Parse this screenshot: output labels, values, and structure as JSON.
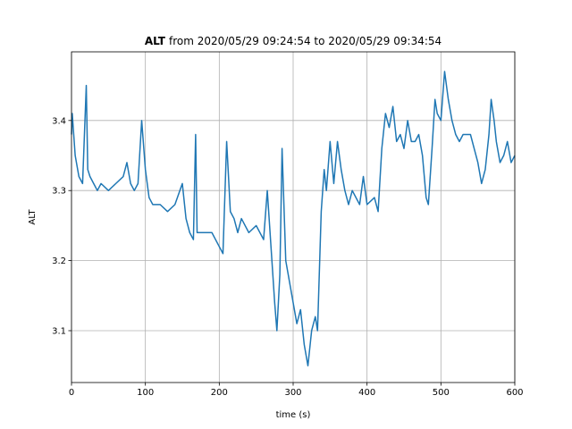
{
  "chart_data": {
    "type": "line",
    "title_parts": [
      "ALT",
      "from 2020/05/29 09:24:54 to 2020/05/29 09:34:54"
    ],
    "xlabel": "time (s)",
    "ylabel": "ALT",
    "xlim": [
      0,
      600
    ],
    "xticks": [
      0,
      100,
      200,
      300,
      400,
      500,
      600
    ],
    "ylim": [
      3.026,
      3.498
    ],
    "yticks": [
      3.1,
      3.2,
      3.3,
      3.4
    ],
    "grid": true,
    "x": [
      0,
      1,
      5,
      10,
      15,
      20,
      22,
      25,
      30,
      35,
      40,
      50,
      60,
      70,
      75,
      80,
      85,
      90,
      95,
      100,
      105,
      110,
      120,
      130,
      140,
      150,
      155,
      160,
      165,
      168,
      170,
      180,
      190,
      200,
      205,
      210,
      215,
      220,
      225,
      230,
      240,
      250,
      260,
      265,
      270,
      275,
      278,
      282,
      285,
      290,
      295,
      300,
      305,
      310,
      315,
      320,
      325,
      330,
      333,
      338,
      342,
      345,
      350,
      355,
      360,
      365,
      370,
      375,
      380,
      390,
      395,
      400,
      410,
      415,
      420,
      425,
      430,
      435,
      440,
      445,
      450,
      455,
      460,
      465,
      470,
      475,
      480,
      483,
      488,
      492,
      495,
      500,
      505,
      510,
      515,
      520,
      525,
      530,
      540,
      545,
      550,
      555,
      560,
      565,
      568,
      572,
      575,
      580,
      585,
      590,
      595,
      600
    ],
    "series": [
      {
        "name": "ALT",
        "color": "#1f77b4",
        "values": [
          3.38,
          3.41,
          3.35,
          3.32,
          3.31,
          3.45,
          3.33,
          3.32,
          3.31,
          3.3,
          3.31,
          3.3,
          3.31,
          3.32,
          3.34,
          3.31,
          3.3,
          3.31,
          3.4,
          3.33,
          3.29,
          3.28,
          3.28,
          3.27,
          3.28,
          3.31,
          3.26,
          3.24,
          3.23,
          3.38,
          3.24,
          3.24,
          3.24,
          3.22,
          3.21,
          3.37,
          3.27,
          3.26,
          3.24,
          3.26,
          3.24,
          3.25,
          3.23,
          3.3,
          3.22,
          3.14,
          3.1,
          3.18,
          3.36,
          3.2,
          3.17,
          3.14,
          3.11,
          3.13,
          3.08,
          3.05,
          3.1,
          3.12,
          3.1,
          3.27,
          3.33,
          3.3,
          3.37,
          3.31,
          3.37,
          3.33,
          3.3,
          3.28,
          3.3,
          3.28,
          3.32,
          3.28,
          3.29,
          3.27,
          3.36,
          3.41,
          3.39,
          3.42,
          3.37,
          3.38,
          3.36,
          3.4,
          3.37,
          3.37,
          3.38,
          3.35,
          3.29,
          3.28,
          3.36,
          3.43,
          3.41,
          3.4,
          3.47,
          3.43,
          3.4,
          3.38,
          3.37,
          3.38,
          3.38,
          3.36,
          3.34,
          3.31,
          3.33,
          3.38,
          3.43,
          3.4,
          3.37,
          3.34,
          3.35,
          3.37,
          3.34,
          3.35
        ]
      }
    ]
  }
}
